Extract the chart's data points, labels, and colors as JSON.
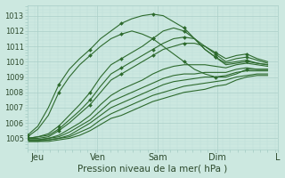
{
  "bg_color": "#cce8e0",
  "grid_major_color": "#aacfc8",
  "grid_minor_color": "#bcddd8",
  "line_color": "#2d6a2d",
  "xlabel": "Pression niveau de la mer( hPa )",
  "xlabel_color": "#2d4a2d",
  "yticks": [
    1005,
    1006,
    1007,
    1008,
    1009,
    1010,
    1011,
    1012,
    1013
  ],
  "ylim": [
    1004.3,
    1013.7
  ],
  "xlim": [
    0,
    100
  ],
  "xtick_positions": [
    4,
    28,
    52,
    76,
    100
  ],
  "xtick_labels": [
    "Jeu",
    "Ven",
    "Sam",
    "Dim",
    "L"
  ],
  "series": [
    {
      "y": [
        1005.0,
        1005.1,
        1005.3,
        1005.8,
        1006.5,
        1007.2,
        1008.0,
        1009.0,
        1009.8,
        1010.2,
        1010.6,
        1011.0,
        1011.5,
        1012.0,
        1012.2,
        1012.0,
        1011.5,
        1010.8,
        1010.3,
        1009.9,
        1010.0,
        1010.1,
        1009.9,
        1009.8
      ],
      "marker": true
    },
    {
      "y": [
        1005.0,
        1005.1,
        1005.2,
        1005.6,
        1006.2,
        1006.8,
        1007.5,
        1008.4,
        1009.2,
        1009.6,
        1010.0,
        1010.4,
        1010.8,
        1011.2,
        1011.5,
        1011.6,
        1011.5,
        1011.0,
        1010.5,
        1010.0,
        1010.2,
        1010.3,
        1010.1,
        1009.9
      ],
      "marker": true
    },
    {
      "y": [
        1005.0,
        1005.0,
        1005.1,
        1005.5,
        1006.0,
        1006.6,
        1007.2,
        1008.0,
        1008.8,
        1009.2,
        1009.6,
        1010.0,
        1010.4,
        1010.8,
        1011.0,
        1011.2,
        1011.2,
        1011.0,
        1010.6,
        1010.2,
        1010.4,
        1010.5,
        1010.2,
        1010.0
      ],
      "marker": true
    },
    {
      "y": [
        1004.9,
        1004.9,
        1005.0,
        1005.2,
        1005.6,
        1006.0,
        1006.5,
        1007.2,
        1007.8,
        1008.2,
        1008.5,
        1008.8,
        1009.2,
        1009.5,
        1009.7,
        1009.8,
        1009.8,
        1009.8,
        1009.7,
        1009.6,
        1009.8,
        1009.9,
        1009.8,
        1009.7
      ],
      "marker": false
    },
    {
      "y": [
        1004.9,
        1004.9,
        1005.0,
        1005.1,
        1005.4,
        1005.8,
        1006.2,
        1006.8,
        1007.4,
        1007.7,
        1008.0,
        1008.3,
        1008.6,
        1008.9,
        1009.1,
        1009.2,
        1009.2,
        1009.3,
        1009.3,
        1009.3,
        1009.5,
        1009.6,
        1009.5,
        1009.5
      ],
      "marker": false
    },
    {
      "y": [
        1004.9,
        1004.9,
        1004.9,
        1005.0,
        1005.2,
        1005.6,
        1006.0,
        1006.5,
        1007.0,
        1007.3,
        1007.6,
        1007.9,
        1008.2,
        1008.5,
        1008.7,
        1008.8,
        1008.9,
        1009.0,
        1009.0,
        1009.1,
        1009.3,
        1009.4,
        1009.4,
        1009.4
      ],
      "marker": false
    },
    {
      "y": [
        1004.8,
        1004.8,
        1004.9,
        1005.0,
        1005.1,
        1005.4,
        1005.7,
        1006.2,
        1006.6,
        1006.9,
        1007.2,
        1007.5,
        1007.8,
        1008.0,
        1008.2,
        1008.4,
        1008.5,
        1008.6,
        1008.7,
        1008.8,
        1009.0,
        1009.1,
        1009.2,
        1009.2
      ],
      "marker": false
    },
    {
      "y": [
        1004.8,
        1004.8,
        1004.8,
        1004.9,
        1005.0,
        1005.2,
        1005.5,
        1005.9,
        1006.3,
        1006.5,
        1006.8,
        1007.1,
        1007.4,
        1007.6,
        1007.8,
        1008.0,
        1008.1,
        1008.2,
        1008.4,
        1008.5,
        1008.8,
        1009.0,
        1009.1,
        1009.1
      ],
      "marker": false
    },
    {
      "y": [
        1005.2,
        1005.8,
        1007.0,
        1008.5,
        1009.5,
        1010.2,
        1010.8,
        1011.5,
        1012.0,
        1012.5,
        1012.8,
        1013.0,
        1013.1,
        1013.0,
        1012.6,
        1012.2,
        1011.5,
        1010.8,
        1010.3,
        1009.8,
        1009.9,
        1010.0,
        1009.9,
        1009.8
      ],
      "marker": true
    },
    {
      "y": [
        1005.1,
        1005.6,
        1006.5,
        1008.0,
        1009.0,
        1009.8,
        1010.4,
        1011.0,
        1011.5,
        1011.8,
        1012.0,
        1011.8,
        1011.5,
        1011.0,
        1010.5,
        1010.0,
        1009.5,
        1009.2,
        1009.0,
        1009.0,
        1009.2,
        1009.5,
        1009.5,
        1009.5
      ],
      "marker": true
    }
  ],
  "marker_style": "D",
  "marker_size": 2.0,
  "marker_every": 3,
  "line_width": 0.8,
  "font_size_ytick": 6,
  "font_size_xtick": 7,
  "font_size_xlabel": 7.5
}
